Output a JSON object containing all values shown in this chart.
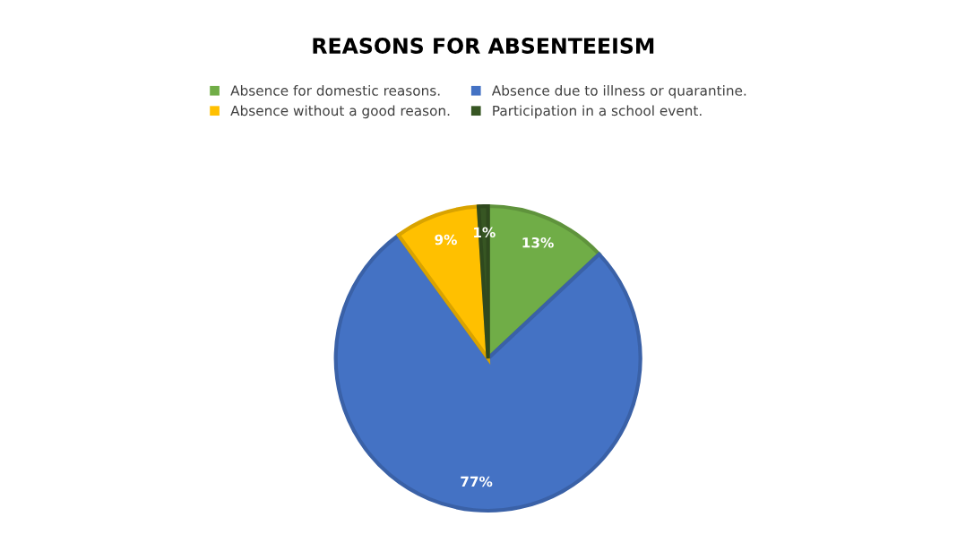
{
  "chart_data": {
    "type": "pie",
    "title": "REASONS FOR ABSENTEEISM",
    "categories": [
      "Absence for domestic reasons.",
      "Absence due to illness or quarantine.",
      "Absence without a good reason.",
      "Participation in a school event."
    ],
    "values": [
      13,
      77,
      9,
      1
    ],
    "colors": [
      "#70ad47",
      "#4472c4",
      "#ffc000",
      "#375623"
    ],
    "value_labels": [
      "13%",
      "77%",
      "9%",
      "1%"
    ],
    "legend": "top"
  }
}
